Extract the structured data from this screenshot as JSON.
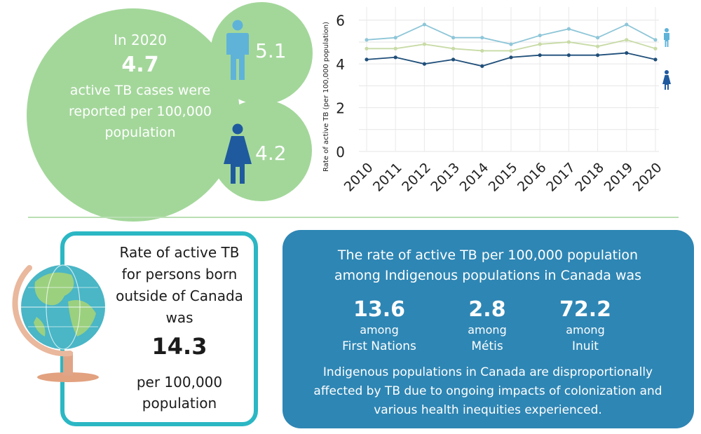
{
  "top_panel": {
    "year_label": "In 2020",
    "overall_rate": "4.7",
    "overall_desc": "active TB cases were reported per 100,000 population",
    "male_rate": "5.1",
    "female_rate": "4.2",
    "male_icon": "male-person-icon",
    "female_icon": "female-person-icon"
  },
  "chart_data": {
    "type": "line",
    "ylabel": "Rate of active TB (per 100,000 population)",
    "xlabel": "",
    "ylim": [
      0,
      6.6
    ],
    "yticks": [
      0,
      2,
      4,
      6
    ],
    "categories": [
      "2010",
      "2011",
      "2012",
      "2013",
      "2014",
      "2015",
      "2016",
      "2017",
      "2018",
      "2019",
      "2020"
    ],
    "series": [
      {
        "values": [
          5.1,
          5.2,
          5.8,
          5.2,
          5.2,
          4.9,
          5.3,
          5.6,
          5.2,
          5.8,
          5.1
        ],
        "color": "#8ec6d8",
        "legend_icon": "male-person-icon"
      },
      {
        "values": [
          4.7,
          4.7,
          4.9,
          4.7,
          4.6,
          4.6,
          4.9,
          5.0,
          4.8,
          5.1,
          4.7
        ],
        "color": "#c8dba6"
      },
      {
        "values": [
          4.2,
          4.3,
          4.0,
          4.2,
          3.9,
          4.3,
          4.4,
          4.4,
          4.4,
          4.5,
          4.2
        ],
        "color": "#1f4e79",
        "legend_icon": "female-person-icon"
      }
    ],
    "grid": true
  },
  "foreign_born": {
    "heading": "Rate of active TB for persons born outside of Canada was",
    "rate": "14.3",
    "unit": "per 100,000 population",
    "icon": "globe-icon"
  },
  "indigenous": {
    "heading": "The rate of active TB per 100,000 population among Indigenous populations in Canada was",
    "groups": [
      {
        "value": "13.6",
        "among": "among",
        "name": "First Nations"
      },
      {
        "value": "2.8",
        "among": "among",
        "name": "Métis"
      },
      {
        "value": "72.2",
        "among": "among",
        "name": "Inuit"
      }
    ],
    "footer": "Indigenous populations in Canada are disproportionally affected by TB due to ongoing impacts of colonization and various health inequities experienced."
  },
  "colors": {
    "bubble_green": "#a3d79a",
    "male_blue": "#5fb3d9",
    "female_navy": "#1f5a9e",
    "card_teal_border": "#2bb7c4",
    "card_blue_bg": "#2e86b4",
    "divider": "#b9dfb3"
  }
}
